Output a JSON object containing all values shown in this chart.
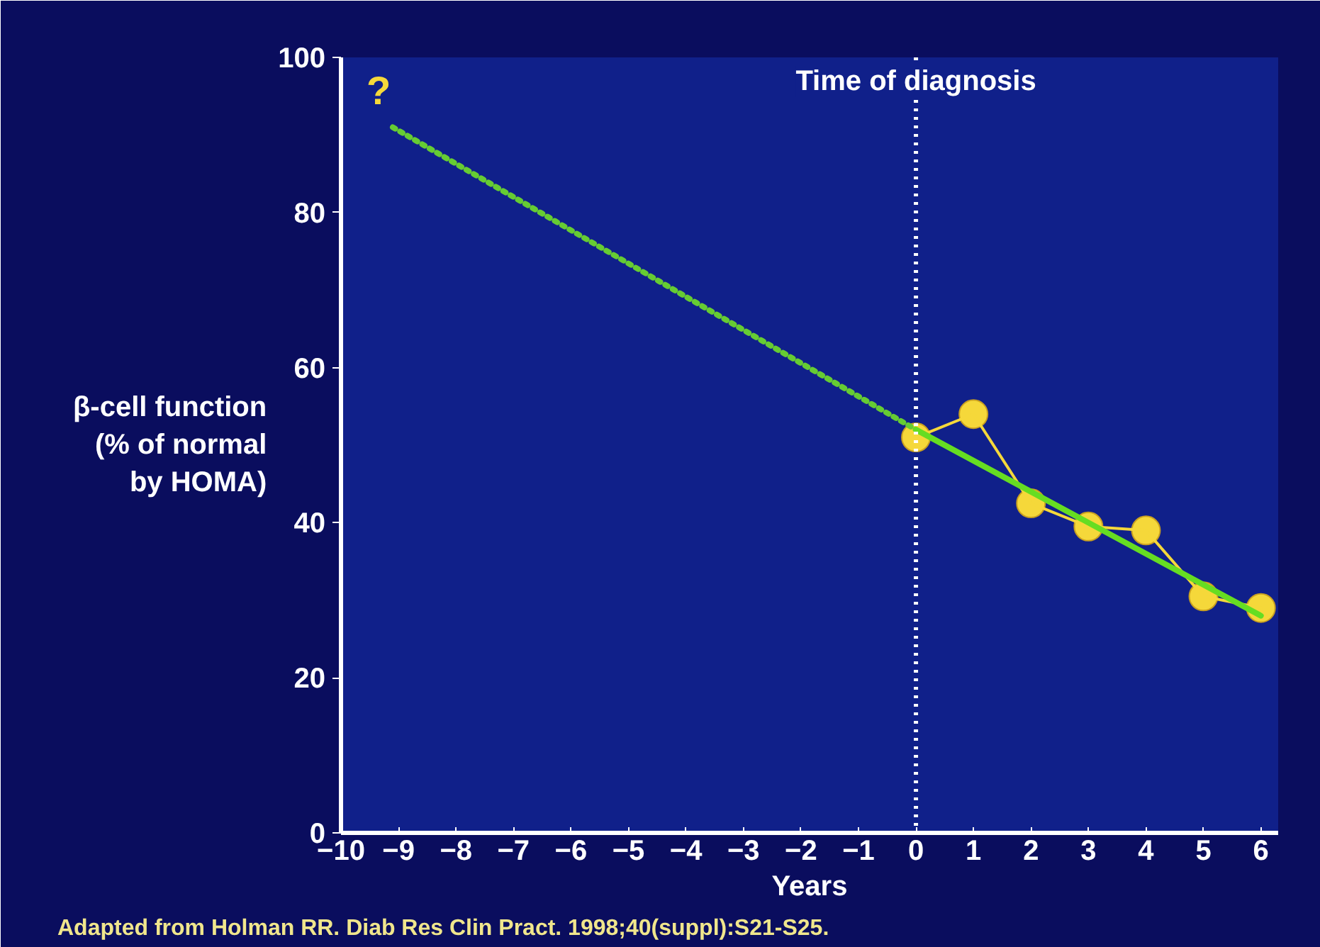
{
  "chart_data": {
    "type": "line",
    "xlabel": "Years",
    "ylabel": "β-cell function\n(% of normal\nby HOMA)",
    "xlim": [
      -10,
      6.3
    ],
    "ylim": [
      0,
      100
    ],
    "xticks": [
      -10,
      -9,
      -8,
      -7,
      -6,
      -5,
      -4,
      -3,
      -2,
      -1,
      0,
      1,
      2,
      3,
      4,
      5,
      6
    ],
    "yticks": [
      0,
      20,
      40,
      60,
      80,
      100
    ],
    "grid": false,
    "series": [
      {
        "color": "#66cc33",
        "line_style": "dotted",
        "marker": "none",
        "x": [
          -9.1,
          0
        ],
        "values": [
          91,
          52
        ]
      },
      {
        "color": "#66dd22",
        "line_style": "solid",
        "marker": "none",
        "x": [
          0,
          6
        ],
        "values": [
          52,
          28
        ]
      },
      {
        "color": "#f5d83a",
        "line_style": "solid",
        "marker": "circle",
        "x": [
          0,
          1,
          2,
          3,
          4,
          5,
          6
        ],
        "values": [
          51,
          54,
          42.5,
          39.5,
          39,
          30.5,
          29
        ]
      }
    ],
    "ref_lines": [
      {
        "axis": "x",
        "value": 0,
        "label": "Time of diagnosis",
        "color": "#ffffff",
        "line_style": "dotted"
      }
    ],
    "annotations": [
      "?",
      "Adapted from Holman RR. Diab Res Clin Pract. 1998;40(suppl):S21-S25."
    ]
  }
}
